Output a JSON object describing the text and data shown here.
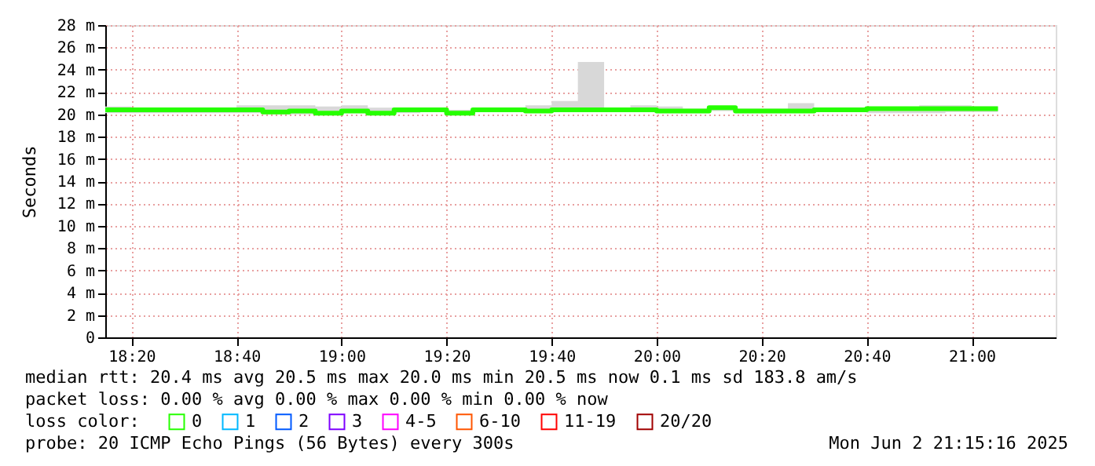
{
  "chart_data": {
    "type": "step",
    "ylabel": "Seconds",
    "legend_title": "loss color:",
    "legend": "bottom",
    "x": [
      "2025-06-02T18:15",
      "2025-06-02T18:20",
      "2025-06-02T18:25",
      "2025-06-02T18:30",
      "2025-06-02T18:35",
      "2025-06-02T18:40",
      "2025-06-02T18:45",
      "2025-06-02T18:50",
      "2025-06-02T18:55",
      "2025-06-02T19:00",
      "2025-06-02T19:05",
      "2025-06-02T19:10",
      "2025-06-02T19:15",
      "2025-06-02T19:20",
      "2025-06-02T19:25",
      "2025-06-02T19:30",
      "2025-06-02T19:35",
      "2025-06-02T19:40",
      "2025-06-02T19:45",
      "2025-06-02T19:50",
      "2025-06-02T19:55",
      "2025-06-02T20:00",
      "2025-06-02T20:05",
      "2025-06-02T20:10",
      "2025-06-02T20:15",
      "2025-06-02T20:20",
      "2025-06-02T20:25",
      "2025-06-02T20:30",
      "2025-06-02T20:35",
      "2025-06-02T20:40",
      "2025-06-02T20:45",
      "2025-06-02T20:50",
      "2025-06-02T20:55",
      "2025-06-02T21:00",
      "2025-06-02T21:05"
    ],
    "series": [
      {
        "name": "0",
        "color": "#26ff00",
        "values": [
          20.4,
          20.4,
          20.4,
          20.4,
          20.4,
          20.4,
          20.2,
          20.3,
          20.1,
          20.3,
          20.1,
          20.4,
          20.4,
          20.1,
          20.4,
          20.4,
          20.3,
          20.4,
          20.4,
          20.4,
          20.4,
          20.3,
          20.3,
          20.6,
          20.3,
          20.3,
          20.3,
          20.4,
          20.4,
          20.5,
          20.5,
          20.5,
          20.5,
          20.5,
          20.5
        ],
        "lower": [
          20.1,
          20.1,
          20.1,
          20.1,
          20.1,
          20.1,
          20.0,
          20.0,
          20.1,
          20.1,
          20.1,
          20.1,
          20.2,
          20.1,
          20.2,
          20.2,
          20.2,
          20.2,
          20.2,
          20.2,
          20.2,
          20.1,
          20.1,
          20.3,
          20.1,
          20.1,
          20.2,
          20.2,
          20.2,
          20.1,
          20.1,
          20.1,
          20.2,
          20.2,
          20.2
        ],
        "upper": [
          20.7,
          20.6,
          20.6,
          20.6,
          20.6,
          20.8,
          20.8,
          20.8,
          20.7,
          20.8,
          20.6,
          20.6,
          20.6,
          20.4,
          20.6,
          20.6,
          20.8,
          21.2,
          24.7,
          20.6,
          20.8,
          20.7,
          20.5,
          20.7,
          20.5,
          20.5,
          21.0,
          20.6,
          20.5,
          20.6,
          20.6,
          20.8,
          20.8,
          20.7,
          20.7
        ]
      },
      {
        "name": "1",
        "color": "#00b8ff",
        "values": [
          null,
          null,
          null,
          null,
          null,
          null,
          null,
          null,
          null,
          null,
          null,
          null,
          null,
          null,
          null,
          null,
          null,
          null,
          null,
          null,
          null,
          null,
          null,
          null,
          null,
          null,
          null,
          null,
          null,
          null,
          null,
          null,
          null,
          null,
          null
        ]
      },
      {
        "name": "2",
        "color": "#0059ff",
        "values": [
          null,
          null,
          null,
          null,
          null,
          null,
          null,
          null,
          null,
          null,
          null,
          null,
          null,
          null,
          null,
          null,
          null,
          null,
          null,
          null,
          null,
          null,
          null,
          null,
          null,
          null,
          null,
          null,
          null,
          null,
          null,
          null,
          null,
          null,
          null
        ]
      },
      {
        "name": "3",
        "color": "#7e00ff",
        "values": [
          null,
          null,
          null,
          null,
          null,
          null,
          null,
          null,
          null,
          null,
          null,
          null,
          null,
          null,
          null,
          null,
          null,
          null,
          null,
          null,
          null,
          null,
          null,
          null,
          null,
          null,
          null,
          null,
          null,
          null,
          null,
          null,
          null,
          null,
          null
        ]
      },
      {
        "name": "4-5",
        "color": "#ff00ff",
        "values": [
          null,
          null,
          null,
          null,
          null,
          null,
          null,
          null,
          null,
          null,
          null,
          null,
          null,
          null,
          null,
          null,
          null,
          null,
          null,
          null,
          null,
          null,
          null,
          null,
          null,
          null,
          null,
          null,
          null,
          null,
          null,
          null,
          null,
          null,
          null
        ]
      },
      {
        "name": "6-10",
        "color": "#ff5500",
        "values": [
          null,
          null,
          null,
          null,
          null,
          null,
          null,
          null,
          null,
          null,
          null,
          null,
          null,
          null,
          null,
          null,
          null,
          null,
          null,
          null,
          null,
          null,
          null,
          null,
          null,
          null,
          null,
          null,
          null,
          null,
          null,
          null,
          null,
          null,
          null
        ]
      },
      {
        "name": "11-19",
        "color": "#ff0000",
        "values": [
          null,
          null,
          null,
          null,
          null,
          null,
          null,
          null,
          null,
          null,
          null,
          null,
          null,
          null,
          null,
          null,
          null,
          null,
          null,
          null,
          null,
          null,
          null,
          null,
          null,
          null,
          null,
          null,
          null,
          null,
          null,
          null,
          null,
          null,
          null
        ]
      },
      {
        "name": "20/20",
        "color": "#a10000",
        "values": [
          null,
          null,
          null,
          null,
          null,
          null,
          null,
          null,
          null,
          null,
          null,
          null,
          null,
          null,
          null,
          null,
          null,
          null,
          null,
          null,
          null,
          null,
          null,
          null,
          null,
          null,
          null,
          null,
          null,
          null,
          null,
          null,
          null,
          null,
          null
        ]
      }
    ],
    "xlim": [
      "2025-06-02T18:15",
      "2025-06-02T21:16"
    ],
    "xticks": [
      {
        "value": "2025-06-02T18:20",
        "label": "18:20"
      },
      {
        "value": "2025-06-02T18:40",
        "label": "18:40"
      },
      {
        "value": "2025-06-02T19:00",
        "label": "19:00"
      },
      {
        "value": "2025-06-02T19:20",
        "label": "19:20"
      },
      {
        "value": "2025-06-02T19:40",
        "label": "19:40"
      },
      {
        "value": "2025-06-02T20:00",
        "label": "20:00"
      },
      {
        "value": "2025-06-02T20:20",
        "label": "20:20"
      },
      {
        "value": "2025-06-02T20:40",
        "label": "20:40"
      },
      {
        "value": "2025-06-02T21:00",
        "label": "21:00"
      }
    ],
    "ylim": [
      0,
      28
    ],
    "yticks": [
      0,
      {
        "value": 2,
        "label": "2 m"
      },
      {
        "value": 4,
        "label": "4 m"
      },
      {
        "value": 6,
        "label": "6 m"
      },
      {
        "value": 8,
        "label": "8 m"
      },
      {
        "value": 10,
        "label": "10 m"
      },
      {
        "value": 12,
        "label": "12 m"
      },
      {
        "value": 14,
        "label": "14 m"
      },
      {
        "value": 16,
        "label": "16 m"
      },
      {
        "value": 18,
        "label": "18 m"
      },
      {
        "value": 20,
        "label": "20 m"
      },
      {
        "value": 22,
        "label": "22 m"
      },
      {
        "value": 24,
        "label": "24 m"
      },
      {
        "value": 26,
        "label": "26 m"
      },
      {
        "value": 28,
        "label": "28 m"
      }
    ],
    "grid": true,
    "annotations": [
      "median rtt:  20.4 ms avg  20.5 ms max  20.0 ms min  20.5 ms now  0.1 ms sd  183.8   am/s",
      "packet loss: 0.00 % avg  0.00 % max  0.00 % min  0.00 % now",
      "probe:       20 ICMP Echo Pings (56 Bytes) every 300s",
      "Mon Jun  2 21:15:16 2025"
    ]
  }
}
